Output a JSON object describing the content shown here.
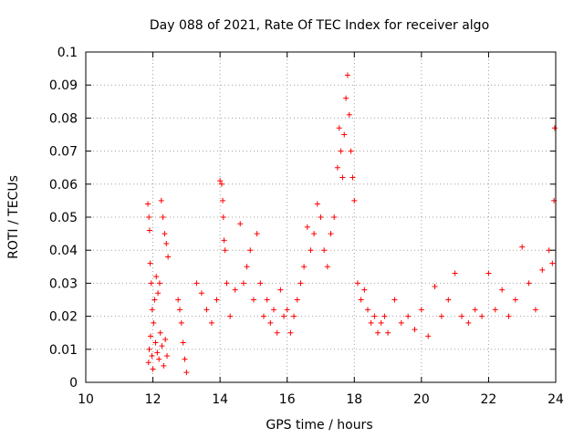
{
  "chart_data": {
    "type": "scatter",
    "title": "Day 088 of 2021, Rate Of TEC Index for receiver algo",
    "xlabel": "GPS time / hours",
    "ylabel": "ROTI / TECUs",
    "xlim": [
      10,
      24
    ],
    "ylim": [
      0,
      0.1
    ],
    "xticks": [
      "10",
      "12",
      "14",
      "16",
      "18",
      "20",
      "22",
      "24"
    ],
    "yticks": [
      "0",
      "0.01",
      "0.02",
      "0.03",
      "0.04",
      "0.05",
      "0.06",
      "0.07",
      "0.08",
      "0.09",
      "0.1"
    ],
    "grid": true,
    "marker": "+",
    "color": "#ff0000",
    "series": [
      {
        "x": [
          11.85,
          11.88,
          11.9,
          11.92,
          11.95,
          11.98,
          12.02,
          12.05,
          12.1,
          12.15,
          12.2,
          12.25,
          12.3,
          12.35,
          12.4,
          12.45,
          11.87,
          11.89,
          11.93,
          11.97,
          12.0,
          12.08,
          12.13,
          12.18,
          12.22,
          12.27,
          12.32,
          12.37,
          12.42,
          12.75,
          12.8,
          12.85,
          12.9,
          12.95,
          13.0,
          13.3,
          13.45,
          13.6,
          13.75,
          13.9,
          14.0,
          14.05,
          14.08,
          14.1,
          14.12,
          14.15,
          14.2,
          14.3,
          14.45,
          14.6,
          14.7,
          14.8,
          14.9,
          15.0,
          15.1,
          15.2,
          15.3,
          15.4,
          15.5,
          15.6,
          15.7,
          15.8,
          15.9,
          16.0,
          16.1,
          16.2,
          16.3,
          16.4,
          16.5,
          16.6,
          16.7,
          16.8,
          16.9,
          17.0,
          17.1,
          17.2,
          17.3,
          17.4,
          17.5,
          17.55,
          17.6,
          17.65,
          17.7,
          17.75,
          17.8,
          17.85,
          17.9,
          17.95,
          18.0,
          18.1,
          18.2,
          18.3,
          18.4,
          18.5,
          18.6,
          18.7,
          18.8,
          18.9,
          19.0,
          19.2,
          19.4,
          19.6,
          19.8,
          20.0,
          20.2,
          20.4,
          20.6,
          20.8,
          21.0,
          21.2,
          21.4,
          21.6,
          21.8,
          22.0,
          22.2,
          22.4,
          22.6,
          22.8,
          23.0,
          23.2,
          23.4,
          23.6,
          23.8,
          23.9,
          23.95,
          23.97
        ],
        "y": [
          0.054,
          0.05,
          0.046,
          0.036,
          0.03,
          0.022,
          0.018,
          0.025,
          0.032,
          0.027,
          0.03,
          0.055,
          0.05,
          0.045,
          0.042,
          0.038,
          0.006,
          0.01,
          0.014,
          0.008,
          0.004,
          0.012,
          0.009,
          0.007,
          0.015,
          0.011,
          0.005,
          0.013,
          0.008,
          0.025,
          0.022,
          0.018,
          0.012,
          0.007,
          0.003,
          0.03,
          0.027,
          0.022,
          0.018,
          0.025,
          0.061,
          0.06,
          0.055,
          0.05,
          0.043,
          0.04,
          0.03,
          0.02,
          0.028,
          0.048,
          0.03,
          0.035,
          0.04,
          0.025,
          0.045,
          0.03,
          0.02,
          0.025,
          0.018,
          0.022,
          0.015,
          0.028,
          0.02,
          0.022,
          0.015,
          0.02,
          0.025,
          0.03,
          0.035,
          0.047,
          0.04,
          0.045,
          0.054,
          0.05,
          0.04,
          0.035,
          0.045,
          0.05,
          0.065,
          0.077,
          0.07,
          0.062,
          0.075,
          0.086,
          0.093,
          0.081,
          0.07,
          0.062,
          0.055,
          0.03,
          0.025,
          0.028,
          0.022,
          0.018,
          0.02,
          0.015,
          0.018,
          0.02,
          0.015,
          0.025,
          0.018,
          0.02,
          0.016,
          0.022,
          0.014,
          0.029,
          0.02,
          0.025,
          0.033,
          0.02,
          0.018,
          0.022,
          0.02,
          0.033,
          0.022,
          0.028,
          0.02,
          0.025,
          0.041,
          0.03,
          0.022,
          0.034,
          0.04,
          0.036,
          0.055,
          0.077
        ]
      }
    ]
  }
}
